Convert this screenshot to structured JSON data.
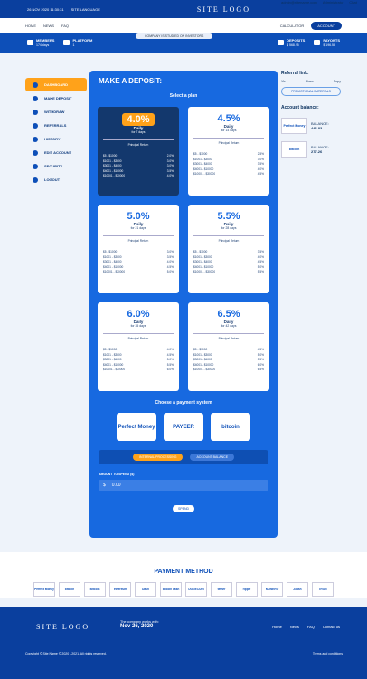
{
  "topbar": {
    "date": "26 NOV 2020 11:30:31",
    "lang": "SITE LANGUAGE",
    "logo": "SITE LOGO",
    "email": "admin@sitename.com",
    "admin": "Administrator",
    "chat": "Chat"
  },
  "nav": {
    "items": [
      "HOME",
      "NEWS",
      "FAQ"
    ],
    "calculator": "CALCULATOR",
    "account": "ACCOUNT"
  },
  "stats": {
    "pill": "COMPANY IS STUDIED ON INVESTORS",
    "members": "MEMBERS",
    "members_val": "174 days",
    "platform": "PLATFORM",
    "platform_val": "1",
    "deposits": "DEPOSITS",
    "deposits_val": "$ 568.25",
    "payouts": "PAYOUTS",
    "payouts_val": "$ 196.58"
  },
  "hello": "Hello test",
  "sidebar": {
    "items": [
      "DASHBOARD",
      "MAKE DEPOSIT",
      "WITHDRAW",
      "REFERRALS",
      "HISTORY",
      "EDIT ACCOUNT",
      "SECURITY",
      "LOGOUT"
    ]
  },
  "deposit": {
    "title": "MAKE A DEPOSIT:",
    "select_plan": "Select a plan",
    "choose_payment": "Choose a payment system",
    "tab_internal": "INTERNAL PROCESSING",
    "tab_balance": "ACCOUNT BALANCE",
    "amount_label": "AMOUNT TO SPEND ($)",
    "currency": "$",
    "amount": "0.00",
    "spend": "SPEND"
  },
  "plans": [
    {
      "pct": "4.0%",
      "daily": "Daily",
      "days": "for 7 days",
      "pr": "Principal Return",
      "rows": [
        [
          "$5 - $1000",
          "2.0%"
        ],
        [
          "$1001 - $3000",
          "3.0%"
        ],
        [
          "$3001 - $4000",
          "3.0%"
        ],
        [
          "$4001 - $10000",
          "3.5%"
        ],
        [
          "$10001 - $30000",
          "4.0%"
        ]
      ]
    },
    {
      "pct": "4.5%",
      "daily": "Daily",
      "days": "for 14 days",
      "pr": "Principal Return",
      "rows": [
        [
          "$5 - $1000",
          "2.5%"
        ],
        [
          "$1001 - $3000",
          "3.0%"
        ],
        [
          "$3001 - $4000",
          "3.5%"
        ],
        [
          "$4001 - $10000",
          "4.0%"
        ],
        [
          "$10001 - $30000",
          "4.5%"
        ]
      ]
    },
    {
      "pct": "5.0%",
      "daily": "Daily",
      "days": "for 21 days",
      "pr": "Principal Return",
      "rows": [
        [
          "$5 - $1000",
          "3.0%"
        ],
        [
          "$1001 - $3000",
          "3.5%"
        ],
        [
          "$3001 - $4000",
          "4.0%"
        ],
        [
          "$4001 - $10000",
          "4.5%"
        ],
        [
          "$10001 - $30000",
          "5.0%"
        ]
      ]
    },
    {
      "pct": "5.5%",
      "daily": "Daily",
      "days": "for 28 days",
      "pr": "Principal Return",
      "rows": [
        [
          "$5 - $1000",
          "3.5%"
        ],
        [
          "$1001 - $3000",
          "4.0%"
        ],
        [
          "$3001 - $4000",
          "4.5%"
        ],
        [
          "$4001 - $10000",
          "5.0%"
        ],
        [
          "$10001 - $30000",
          "5.5%"
        ]
      ]
    },
    {
      "pct": "6.0%",
      "daily": "Daily",
      "days": "for 35 days",
      "pr": "Principal Return",
      "rows": [
        [
          "$5 - $1000",
          "4.0%"
        ],
        [
          "$1001 - $3000",
          "4.5%"
        ],
        [
          "$3001 - $4000",
          "5.0%"
        ],
        [
          "$4001 - $10000",
          "5.5%"
        ],
        [
          "$10001 - $30000",
          "6.0%"
        ]
      ]
    },
    {
      "pct": "6.5%",
      "daily": "Daily",
      "days": "for 42 days",
      "pr": "Principal Return",
      "rows": [
        [
          "$5 - $1000",
          "4.5%"
        ],
        [
          "$1001 - $3000",
          "5.0%"
        ],
        [
          "$3001 - $4000",
          "5.5%"
        ],
        [
          "$4001 - $10000",
          "6.0%"
        ],
        [
          "$10001 - $30000",
          "6.5%"
        ]
      ]
    }
  ],
  "payments": [
    "Perfect Money",
    "PAYEER",
    "bitcoin"
  ],
  "right": {
    "ref_title": "Referral link:",
    "ref_a": "Vie",
    "ref_b": "Share",
    "ref_c": "Copy",
    "promo": "PROMOTIONAL MATERIALS",
    "bal_title": "Account balance:",
    "bal1_label": "BALANCE:",
    "bal1": "446.83",
    "bal2_label": "BALANCE:",
    "bal2": "277.26"
  },
  "payment_method": {
    "title": "PAYMENT METHOD",
    "logos": [
      "Perfect Money",
      "bitcoin",
      "Bitcoin",
      "ethereum",
      "Dash",
      "bitcoin cash",
      "DOGECOIN",
      "tether",
      "ripple",
      "MONERO",
      "Zcash",
      "TRON"
    ]
  },
  "footer": {
    "logo": "SITE LOGO",
    "since": "The company works with:",
    "since_date": "Nov 26, 2020",
    "nav": [
      "Home",
      "News",
      "FAQ",
      "Contact us"
    ],
    "copy": "Copyright © Site Name © 2020 - 2021. All rights reserved.",
    "terms": "Terms and conditions"
  },
  "colors": {
    "brand": "#0d4fb8",
    "accent": "#ffa21a"
  }
}
